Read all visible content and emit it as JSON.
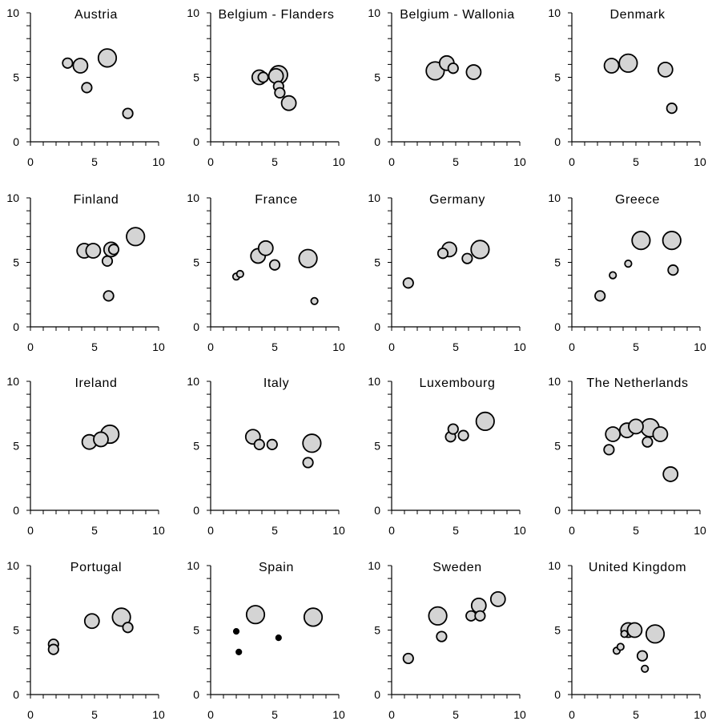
{
  "chart_data": [
    {
      "type": "scatter",
      "title": "Austria",
      "xlim": [
        0,
        10
      ],
      "ylim": [
        0,
        10
      ],
      "x_ticks": [
        "0",
        "5",
        "10"
      ],
      "y_ticks": [
        "0",
        "5",
        "10"
      ],
      "points": [
        {
          "x": 2.9,
          "y": 6.1,
          "size": 1
        },
        {
          "x": 3.9,
          "y": 5.9,
          "size": 2
        },
        {
          "x": 4.4,
          "y": 4.2,
          "size": 1
        },
        {
          "x": 6.0,
          "y": 6.5,
          "size": 3
        },
        {
          "x": 7.6,
          "y": 2.2,
          "size": 1
        }
      ]
    },
    {
      "type": "scatter",
      "title": "Belgium - Flanders",
      "xlim": [
        0,
        10
      ],
      "ylim": [
        0,
        10
      ],
      "x_ticks": [
        "0",
        "5",
        "10"
      ],
      "y_ticks": [
        "0",
        "5",
        "10"
      ],
      "points": [
        {
          "x": 3.8,
          "y": 5.0,
          "size": 2
        },
        {
          "x": 4.1,
          "y": 5.0,
          "size": 1
        },
        {
          "x": 5.1,
          "y": 5.1,
          "size": 2
        },
        {
          "x": 5.3,
          "y": 5.2,
          "size": 3
        },
        {
          "x": 5.3,
          "y": 4.3,
          "size": 1
        },
        {
          "x": 5.4,
          "y": 3.8,
          "size": 1
        },
        {
          "x": 6.1,
          "y": 3.0,
          "size": 2
        }
      ]
    },
    {
      "type": "scatter",
      "title": "Belgium - Wallonia",
      "xlim": [
        0,
        10
      ],
      "ylim": [
        0,
        10
      ],
      "x_ticks": [
        "0",
        "5",
        "10"
      ],
      "y_ticks": [
        "0",
        "5",
        "10"
      ],
      "points": [
        {
          "x": 3.4,
          "y": 5.5,
          "size": 3
        },
        {
          "x": 4.3,
          "y": 6.1,
          "size": 2
        },
        {
          "x": 4.8,
          "y": 5.7,
          "size": 1
        },
        {
          "x": 6.4,
          "y": 5.4,
          "size": 2
        }
      ]
    },
    {
      "type": "scatter",
      "title": "Denmark",
      "xlim": [
        0,
        10
      ],
      "ylim": [
        0,
        10
      ],
      "x_ticks": [
        "0",
        "5",
        "10"
      ],
      "y_ticks": [
        "0",
        "5",
        "10"
      ],
      "points": [
        {
          "x": 3.1,
          "y": 5.9,
          "size": 2
        },
        {
          "x": 4.4,
          "y": 6.1,
          "size": 3
        },
        {
          "x": 7.3,
          "y": 5.6,
          "size": 2
        },
        {
          "x": 7.8,
          "y": 2.6,
          "size": 1
        }
      ]
    },
    {
      "type": "scatter",
      "title": "Finland",
      "xlim": [
        0,
        10
      ],
      "ylim": [
        0,
        10
      ],
      "x_ticks": [
        "0",
        "5",
        "10"
      ],
      "y_ticks": [
        "0",
        "5",
        "10"
      ],
      "points": [
        {
          "x": 4.2,
          "y": 5.9,
          "size": 2
        },
        {
          "x": 4.9,
          "y": 5.9,
          "size": 2
        },
        {
          "x": 6.0,
          "y": 5.1,
          "size": 1
        },
        {
          "x": 6.1,
          "y": 2.4,
          "size": 1
        },
        {
          "x": 6.3,
          "y": 6.0,
          "size": 2
        },
        {
          "x": 6.5,
          "y": 6.0,
          "size": 1
        },
        {
          "x": 8.2,
          "y": 7.0,
          "size": 3
        }
      ]
    },
    {
      "type": "scatter",
      "title": "France",
      "xlim": [
        0,
        10
      ],
      "ylim": [
        0,
        10
      ],
      "x_ticks": [
        "0",
        "5",
        "10"
      ],
      "y_ticks": [
        "0",
        "5",
        "10"
      ],
      "points": [
        {
          "x": 2.0,
          "y": 3.9,
          "size": 0
        },
        {
          "x": 2.3,
          "y": 4.1,
          "size": 0
        },
        {
          "x": 3.7,
          "y": 5.5,
          "size": 2
        },
        {
          "x": 4.3,
          "y": 6.1,
          "size": 2
        },
        {
          "x": 5.0,
          "y": 4.8,
          "size": 1
        },
        {
          "x": 7.6,
          "y": 5.3,
          "size": 3
        },
        {
          "x": 8.1,
          "y": 2.0,
          "size": 0
        }
      ]
    },
    {
      "type": "scatter",
      "title": "Germany",
      "xlim": [
        0,
        10
      ],
      "ylim": [
        0,
        10
      ],
      "x_ticks": [
        "0",
        "5",
        "10"
      ],
      "y_ticks": [
        "0",
        "5",
        "10"
      ],
      "points": [
        {
          "x": 1.3,
          "y": 3.4,
          "size": 1
        },
        {
          "x": 4.0,
          "y": 5.7,
          "size": 1
        },
        {
          "x": 4.5,
          "y": 6.0,
          "size": 2
        },
        {
          "x": 5.9,
          "y": 5.3,
          "size": 1
        },
        {
          "x": 6.9,
          "y": 6.0,
          "size": 3
        }
      ]
    },
    {
      "type": "scatter",
      "title": "Greece",
      "xlim": [
        0,
        10
      ],
      "ylim": [
        0,
        10
      ],
      "x_ticks": [
        "0",
        "5",
        "10"
      ],
      "y_ticks": [
        "0",
        "5",
        "10"
      ],
      "points": [
        {
          "x": 2.2,
          "y": 2.4,
          "size": 1
        },
        {
          "x": 3.2,
          "y": 4.0,
          "size": 0
        },
        {
          "x": 4.4,
          "y": 4.9,
          "size": 0
        },
        {
          "x": 5.4,
          "y": 6.7,
          "size": 3
        },
        {
          "x": 7.8,
          "y": 6.7,
          "size": 3
        },
        {
          "x": 7.9,
          "y": 4.4,
          "size": 1
        }
      ]
    },
    {
      "type": "scatter",
      "title": "Ireland",
      "xlim": [
        0,
        10
      ],
      "ylim": [
        0,
        10
      ],
      "x_ticks": [
        "0",
        "5",
        "10"
      ],
      "y_ticks": [
        "0",
        "5",
        "10"
      ],
      "points": [
        {
          "x": 4.6,
          "y": 5.3,
          "size": 2
        },
        {
          "x": 5.5,
          "y": 5.5,
          "size": 2
        },
        {
          "x": 6.2,
          "y": 5.9,
          "size": 3
        }
      ]
    },
    {
      "type": "scatter",
      "title": "Italy",
      "xlim": [
        0,
        10
      ],
      "ylim": [
        0,
        10
      ],
      "x_ticks": [
        "0",
        "5",
        "10"
      ],
      "y_ticks": [
        "0",
        "5",
        "10"
      ],
      "points": [
        {
          "x": 3.3,
          "y": 5.7,
          "size": 2
        },
        {
          "x": 3.8,
          "y": 5.1,
          "size": 1
        },
        {
          "x": 4.8,
          "y": 5.1,
          "size": 1
        },
        {
          "x": 7.6,
          "y": 3.7,
          "size": 1
        },
        {
          "x": 7.9,
          "y": 5.2,
          "size": 3
        }
      ]
    },
    {
      "type": "scatter",
      "title": "Luxembourg",
      "xlim": [
        0,
        10
      ],
      "ylim": [
        0,
        10
      ],
      "x_ticks": [
        "0",
        "5",
        "10"
      ],
      "y_ticks": [
        "0",
        "5",
        "10"
      ],
      "points": [
        {
          "x": 4.6,
          "y": 5.7,
          "size": 1
        },
        {
          "x": 4.8,
          "y": 6.3,
          "size": 1
        },
        {
          "x": 5.6,
          "y": 5.8,
          "size": 1
        },
        {
          "x": 7.3,
          "y": 6.9,
          "size": 3
        }
      ]
    },
    {
      "type": "scatter",
      "title": "The Netherlands",
      "xlim": [
        0,
        10
      ],
      "ylim": [
        0,
        10
      ],
      "x_ticks": [
        "0",
        "5",
        "10"
      ],
      "y_ticks": [
        "0",
        "5",
        "10"
      ],
      "points": [
        {
          "x": 2.9,
          "y": 4.7,
          "size": 1
        },
        {
          "x": 3.2,
          "y": 5.9,
          "size": 2
        },
        {
          "x": 4.3,
          "y": 6.2,
          "size": 2
        },
        {
          "x": 5.0,
          "y": 6.5,
          "size": 2
        },
        {
          "x": 5.9,
          "y": 5.3,
          "size": 1
        },
        {
          "x": 6.1,
          "y": 6.4,
          "size": 3
        },
        {
          "x": 6.9,
          "y": 5.9,
          "size": 2
        },
        {
          "x": 7.7,
          "y": 2.8,
          "size": 2
        }
      ]
    },
    {
      "type": "scatter",
      "title": "Portugal",
      "xlim": [
        0,
        10
      ],
      "ylim": [
        0,
        10
      ],
      "x_ticks": [
        "0",
        "5",
        "10"
      ],
      "y_ticks": [
        "0",
        "5",
        "10"
      ],
      "points": [
        {
          "x": 1.8,
          "y": 3.9,
          "size": 1
        },
        {
          "x": 1.8,
          "y": 3.5,
          "size": 1
        },
        {
          "x": 4.8,
          "y": 5.7,
          "size": 2
        },
        {
          "x": 7.1,
          "y": 6.0,
          "size": 3
        },
        {
          "x": 7.6,
          "y": 5.2,
          "size": 1
        }
      ]
    },
    {
      "type": "scatter",
      "title": "Spain",
      "xlim": [
        0,
        10
      ],
      "ylim": [
        0,
        10
      ],
      "x_ticks": [
        "0",
        "5",
        "10"
      ],
      "y_ticks": [
        "0",
        "5",
        "10"
      ],
      "points": [
        {
          "x": 2.0,
          "y": 4.9,
          "size": -1
        },
        {
          "x": 2.2,
          "y": 3.3,
          "size": -1
        },
        {
          "x": 3.5,
          "y": 6.2,
          "size": 3
        },
        {
          "x": 5.3,
          "y": 4.4,
          "size": -1
        },
        {
          "x": 8.0,
          "y": 6.0,
          "size": 3
        }
      ]
    },
    {
      "type": "scatter",
      "title": "Sweden",
      "xlim": [
        0,
        10
      ],
      "ylim": [
        0,
        10
      ],
      "x_ticks": [
        "0",
        "5",
        "10"
      ],
      "y_ticks": [
        "0",
        "5",
        "10"
      ],
      "points": [
        {
          "x": 1.3,
          "y": 2.8,
          "size": 1
        },
        {
          "x": 3.6,
          "y": 6.1,
          "size": 3
        },
        {
          "x": 3.9,
          "y": 4.5,
          "size": 1
        },
        {
          "x": 6.2,
          "y": 6.1,
          "size": 1
        },
        {
          "x": 6.9,
          "y": 6.1,
          "size": 1
        },
        {
          "x": 6.8,
          "y": 6.9,
          "size": 2
        },
        {
          "x": 8.3,
          "y": 7.4,
          "size": 2
        }
      ]
    },
    {
      "type": "scatter",
      "title": "United Kingdom",
      "xlim": [
        0,
        10
      ],
      "ylim": [
        0,
        10
      ],
      "x_ticks": [
        "0",
        "5",
        "10"
      ],
      "y_ticks": [
        "0",
        "5",
        "10"
      ],
      "points": [
        {
          "x": 3.5,
          "y": 3.4,
          "size": 0
        },
        {
          "x": 3.8,
          "y": 3.7,
          "size": 0
        },
        {
          "x": 4.1,
          "y": 4.7,
          "size": 0
        },
        {
          "x": 4.4,
          "y": 5.0,
          "size": 2
        },
        {
          "x": 4.9,
          "y": 5.0,
          "size": 2
        },
        {
          "x": 5.5,
          "y": 3.0,
          "size": 1
        },
        {
          "x": 5.7,
          "y": 2.0,
          "size": 0
        },
        {
          "x": 6.5,
          "y": 4.7,
          "size": 3
        }
      ]
    }
  ]
}
